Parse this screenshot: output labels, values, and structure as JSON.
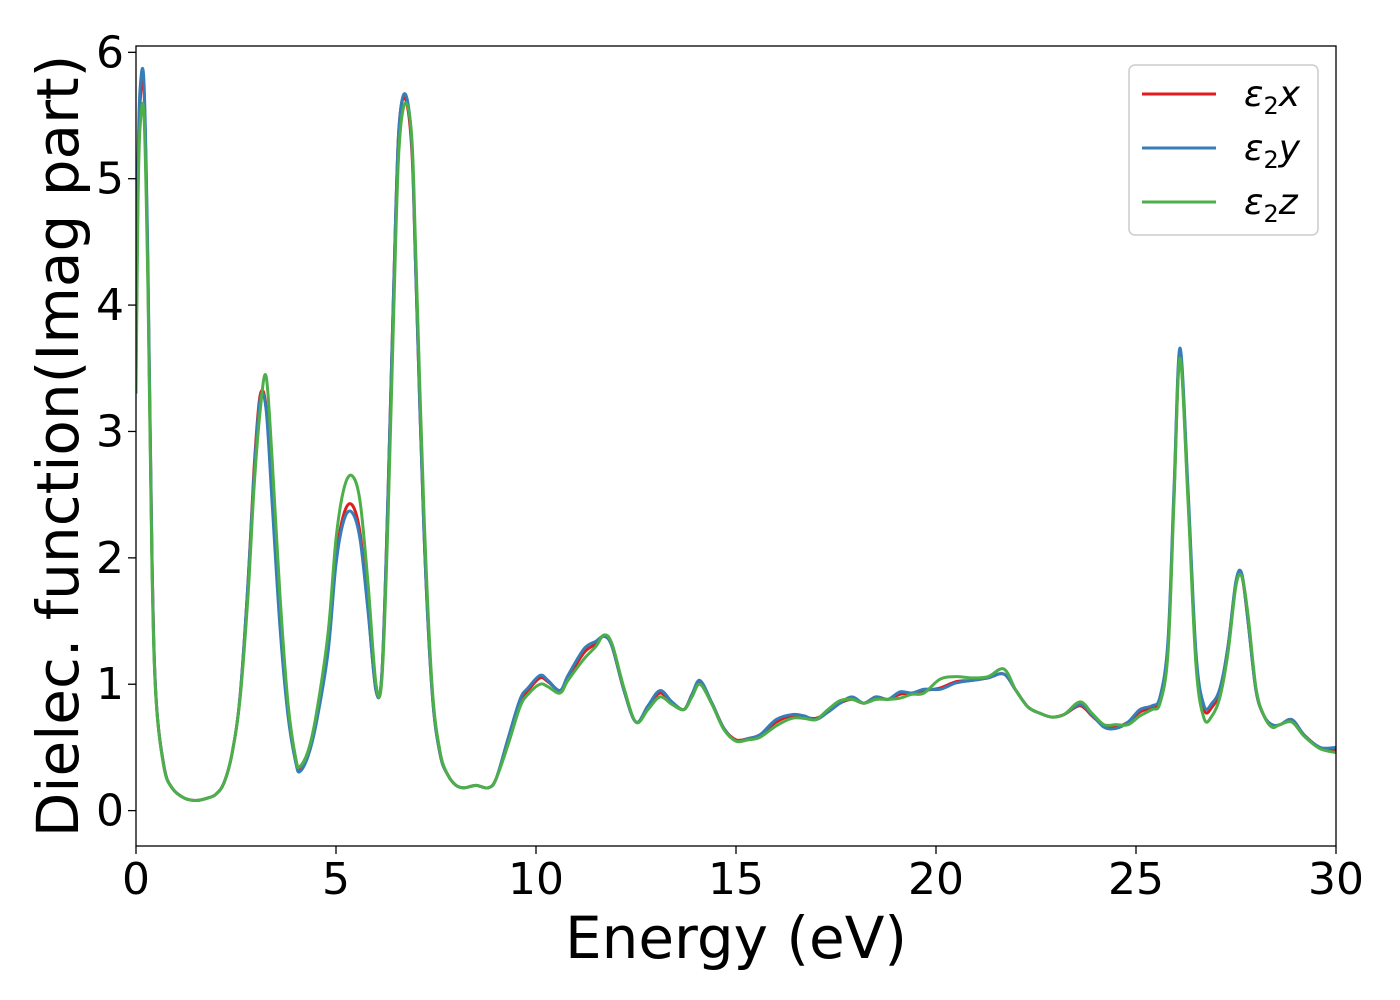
{
  "chart_data": {
    "type": "line",
    "xlabel": "Energy (eV)",
    "ylabel": "Dielec. function(Imag part)",
    "xlim": [
      0,
      30
    ],
    "ylim": [
      -0.28,
      6.05
    ],
    "xticks": [
      0,
      5,
      10,
      15,
      20,
      25,
      30
    ],
    "yticks": [
      0,
      1,
      2,
      3,
      4,
      5,
      6
    ],
    "grid": false,
    "legend_position": "top-right",
    "series": [
      {
        "name": "ε2x",
        "legend_main": "ε",
        "legend_sub": "2",
        "legend_tail": "x",
        "color": "#e41a1c",
        "x": [
          0,
          0.05,
          0.1,
          0.2,
          0.3,
          0.4,
          0.5,
          0.7,
          0.9,
          1.2,
          1.5,
          1.8,
          2.0,
          2.2,
          2.4,
          2.6,
          2.8,
          2.95,
          3.1,
          3.25,
          3.4,
          3.6,
          3.8,
          4.0,
          4.1,
          4.3,
          4.5,
          4.8,
          5.0,
          5.2,
          5.4,
          5.6,
          5.8,
          6.0,
          6.15,
          6.3,
          6.5,
          6.6,
          6.75,
          6.9,
          7.0,
          7.2,
          7.4,
          7.6,
          7.8,
          8.0,
          8.2,
          8.5,
          8.8,
          9.0,
          9.3,
          9.6,
          9.8,
          10.1,
          10.3,
          10.6,
          10.8,
          11.2,
          11.5,
          11.7,
          11.9,
          12.2,
          12.5,
          12.8,
          13.1,
          13.4,
          13.7,
          13.9,
          14.1,
          14.4,
          14.7,
          15.0,
          15.3,
          15.6,
          16.0,
          16.4,
          16.7,
          17.0,
          17.3,
          17.6,
          17.9,
          18.2,
          18.5,
          18.8,
          19.1,
          19.4,
          19.7,
          20.1,
          20.5,
          20.9,
          21.3,
          21.7,
          22.0,
          22.3,
          22.6,
          22.9,
          23.2,
          23.6,
          23.9,
          24.2,
          24.5,
          24.8,
          25.1,
          25.4,
          25.6,
          25.8,
          25.95,
          26.1,
          26.3,
          26.5,
          26.7,
          26.9,
          27.1,
          27.3,
          27.5,
          27.65,
          27.8,
          28.0,
          28.2,
          28.4,
          28.6,
          28.9,
          29.2,
          29.6,
          30.0
        ],
        "y": [
          3.5,
          5.0,
          5.6,
          5.7,
          4.2,
          2.0,
          0.9,
          0.35,
          0.18,
          0.1,
          0.08,
          0.1,
          0.13,
          0.22,
          0.45,
          0.9,
          1.8,
          2.7,
          3.28,
          3.2,
          2.5,
          1.5,
          0.8,
          0.4,
          0.33,
          0.45,
          0.7,
          1.3,
          2.0,
          2.35,
          2.42,
          2.2,
          1.6,
          0.95,
          1.1,
          2.5,
          4.8,
          5.5,
          5.62,
          5.2,
          4.2,
          2.2,
          0.95,
          0.45,
          0.28,
          0.2,
          0.18,
          0.2,
          0.18,
          0.25,
          0.55,
          0.85,
          0.95,
          1.05,
          1.02,
          0.95,
          1.05,
          1.25,
          1.32,
          1.38,
          1.3,
          0.95,
          0.7,
          0.82,
          0.93,
          0.85,
          0.8,
          0.92,
          1.02,
          0.85,
          0.65,
          0.56,
          0.57,
          0.6,
          0.7,
          0.75,
          0.74,
          0.73,
          0.78,
          0.85,
          0.88,
          0.85,
          0.9,
          0.88,
          0.92,
          0.93,
          0.95,
          0.97,
          1.02,
          1.03,
          1.05,
          1.08,
          0.95,
          0.82,
          0.77,
          0.74,
          0.76,
          0.83,
          0.75,
          0.67,
          0.66,
          0.7,
          0.78,
          0.82,
          0.88,
          1.3,
          2.5,
          3.6,
          2.5,
          1.2,
          0.8,
          0.82,
          0.95,
          1.3,
          1.8,
          1.85,
          1.5,
          0.95,
          0.75,
          0.68,
          0.68,
          0.72,
          0.6,
          0.5,
          0.48
        ]
      },
      {
        "name": "ε2y",
        "legend_main": "ε",
        "legend_sub": "2",
        "legend_tail": "y",
        "color": "#377eb8",
        "x": [
          0,
          0.05,
          0.1,
          0.2,
          0.3,
          0.4,
          0.5,
          0.7,
          0.9,
          1.2,
          1.5,
          1.8,
          2.0,
          2.2,
          2.4,
          2.6,
          2.8,
          2.95,
          3.1,
          3.25,
          3.4,
          3.6,
          3.8,
          4.0,
          4.1,
          4.3,
          4.5,
          4.8,
          5.0,
          5.2,
          5.4,
          5.6,
          5.8,
          6.0,
          6.15,
          6.3,
          6.5,
          6.6,
          6.75,
          6.9,
          7.0,
          7.2,
          7.4,
          7.6,
          7.8,
          8.0,
          8.2,
          8.5,
          8.8,
          9.0,
          9.3,
          9.6,
          9.8,
          10.1,
          10.3,
          10.6,
          10.8,
          11.2,
          11.5,
          11.7,
          11.9,
          12.2,
          12.5,
          12.8,
          13.1,
          13.4,
          13.7,
          13.9,
          14.1,
          14.4,
          14.7,
          15.0,
          15.3,
          15.6,
          16.0,
          16.4,
          16.7,
          17.0,
          17.3,
          17.6,
          17.9,
          18.2,
          18.5,
          18.8,
          19.1,
          19.4,
          19.7,
          20.1,
          20.5,
          20.9,
          21.3,
          21.7,
          22.0,
          22.3,
          22.6,
          22.9,
          23.2,
          23.6,
          23.9,
          24.2,
          24.5,
          24.8,
          25.1,
          25.4,
          25.6,
          25.8,
          25.95,
          26.1,
          26.3,
          26.5,
          26.7,
          26.9,
          27.1,
          27.3,
          27.5,
          27.65,
          27.8,
          28.0,
          28.2,
          28.4,
          28.6,
          28.9,
          29.2,
          29.6,
          30.0
        ],
        "y": [
          3.6,
          5.1,
          5.7,
          5.76,
          4.3,
          2.0,
          0.9,
          0.35,
          0.18,
          0.1,
          0.08,
          0.1,
          0.13,
          0.22,
          0.45,
          0.9,
          1.8,
          2.65,
          3.25,
          3.18,
          2.45,
          1.45,
          0.75,
          0.37,
          0.31,
          0.43,
          0.68,
          1.25,
          1.95,
          2.3,
          2.36,
          2.15,
          1.58,
          0.95,
          1.1,
          2.5,
          4.8,
          5.5,
          5.66,
          5.25,
          4.2,
          2.2,
          0.95,
          0.45,
          0.28,
          0.2,
          0.18,
          0.2,
          0.18,
          0.25,
          0.57,
          0.88,
          0.97,
          1.07,
          1.03,
          0.95,
          1.07,
          1.28,
          1.34,
          1.38,
          1.3,
          0.95,
          0.7,
          0.83,
          0.95,
          0.86,
          0.8,
          0.92,
          1.03,
          0.85,
          0.65,
          0.55,
          0.57,
          0.6,
          0.72,
          0.76,
          0.75,
          0.72,
          0.78,
          0.85,
          0.9,
          0.85,
          0.9,
          0.88,
          0.94,
          0.93,
          0.96,
          0.96,
          1.01,
          1.03,
          1.05,
          1.08,
          0.95,
          0.82,
          0.77,
          0.74,
          0.76,
          0.84,
          0.76,
          0.66,
          0.65,
          0.7,
          0.8,
          0.83,
          0.9,
          1.35,
          2.55,
          3.66,
          2.55,
          1.25,
          0.83,
          0.85,
          0.97,
          1.3,
          1.82,
          1.87,
          1.5,
          0.95,
          0.75,
          0.68,
          0.68,
          0.72,
          0.6,
          0.5,
          0.5
        ]
      },
      {
        "name": "ε2z",
        "legend_main": "ε",
        "legend_sub": "2",
        "legend_tail": "z",
        "color": "#4daf4a",
        "x": [
          0,
          0.05,
          0.1,
          0.2,
          0.3,
          0.4,
          0.5,
          0.7,
          0.9,
          1.2,
          1.5,
          1.8,
          2.0,
          2.2,
          2.4,
          2.6,
          2.8,
          2.95,
          3.1,
          3.25,
          3.4,
          3.6,
          3.8,
          4.0,
          4.1,
          4.3,
          4.5,
          4.8,
          5.0,
          5.2,
          5.4,
          5.6,
          5.8,
          6.0,
          6.15,
          6.3,
          6.5,
          6.6,
          6.75,
          6.9,
          7.0,
          7.2,
          7.4,
          7.6,
          7.8,
          8.0,
          8.2,
          8.5,
          8.8,
          9.0,
          9.3,
          9.6,
          9.8,
          10.1,
          10.3,
          10.6,
          10.8,
          11.2,
          11.5,
          11.7,
          11.9,
          12.2,
          12.5,
          12.8,
          13.1,
          13.4,
          13.7,
          13.9,
          14.1,
          14.4,
          14.7,
          15.0,
          15.3,
          15.6,
          16.0,
          16.4,
          16.7,
          17.0,
          17.3,
          17.6,
          17.9,
          18.2,
          18.5,
          18.8,
          19.1,
          19.4,
          19.7,
          20.1,
          20.5,
          20.9,
          21.3,
          21.7,
          22.0,
          22.3,
          22.6,
          22.9,
          23.2,
          23.6,
          23.9,
          24.2,
          24.5,
          24.8,
          25.1,
          25.4,
          25.6,
          25.8,
          25.95,
          26.1,
          26.3,
          26.5,
          26.7,
          26.9,
          27.1,
          27.3,
          27.5,
          27.65,
          27.8,
          28.0,
          28.2,
          28.4,
          28.6,
          28.9,
          29.2,
          29.6,
          30.0
        ],
        "y": [
          3.3,
          4.8,
          5.4,
          5.5,
          4.1,
          1.9,
          0.88,
          0.34,
          0.18,
          0.1,
          0.08,
          0.1,
          0.13,
          0.22,
          0.45,
          0.88,
          1.7,
          2.55,
          3.15,
          3.44,
          2.8,
          1.7,
          0.85,
          0.4,
          0.35,
          0.47,
          0.75,
          1.4,
          2.15,
          2.55,
          2.65,
          2.45,
          1.8,
          1.0,
          1.05,
          2.3,
          4.6,
          5.35,
          5.6,
          5.3,
          4.35,
          2.35,
          1.0,
          0.47,
          0.28,
          0.2,
          0.18,
          0.2,
          0.18,
          0.25,
          0.52,
          0.82,
          0.92,
          1.0,
          0.98,
          0.93,
          1.03,
          1.2,
          1.3,
          1.39,
          1.32,
          0.97,
          0.7,
          0.8,
          0.9,
          0.84,
          0.8,
          0.9,
          1.0,
          0.84,
          0.64,
          0.55,
          0.56,
          0.58,
          0.67,
          0.73,
          0.73,
          0.72,
          0.8,
          0.87,
          0.88,
          0.85,
          0.88,
          0.88,
          0.89,
          0.92,
          0.93,
          1.04,
          1.06,
          1.05,
          1.06,
          1.12,
          0.95,
          0.82,
          0.77,
          0.74,
          0.76,
          0.86,
          0.77,
          0.68,
          0.68,
          0.68,
          0.75,
          0.8,
          0.85,
          1.25,
          2.45,
          3.58,
          2.45,
          1.15,
          0.73,
          0.75,
          0.9,
          1.25,
          1.78,
          1.85,
          1.55,
          0.97,
          0.75,
          0.66,
          0.68,
          0.7,
          0.59,
          0.49,
          0.46
        ]
      }
    ]
  }
}
